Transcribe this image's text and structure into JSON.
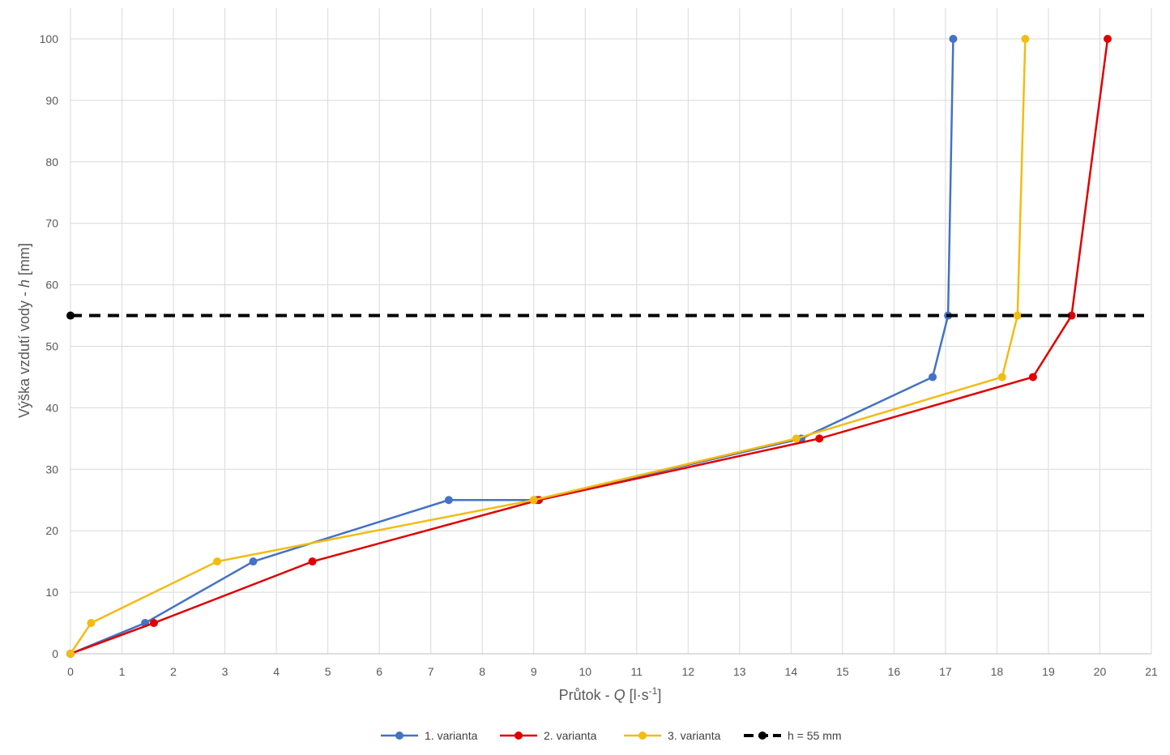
{
  "chart_data": {
    "type": "line",
    "xlabel": {
      "prefix": "Průtok - ",
      "var": "Q",
      "unit_open": " [l·s",
      "sup": "-1",
      "unit_close": "]"
    },
    "ylabel": {
      "prefix": "Výška vzdutí vody - ",
      "var": "h",
      "unit": " [mm]"
    },
    "xlim": [
      0,
      21
    ],
    "ylim": [
      0,
      100
    ],
    "x_ticks": [
      0,
      1,
      2,
      3,
      4,
      5,
      6,
      7,
      8,
      9,
      10,
      11,
      12,
      13,
      14,
      15,
      16,
      17,
      18,
      19,
      20,
      21
    ],
    "y_ticks": [
      0,
      10,
      20,
      30,
      40,
      50,
      60,
      70,
      80,
      90,
      100
    ],
    "grid": true,
    "legend_position": "bottom",
    "series": [
      {
        "name": "1. varianta",
        "color": "#4472C4",
        "dashed": false,
        "x": [
          0,
          1.45,
          3.55,
          7.35,
          9.05,
          14.2,
          16.75,
          17.05,
          17.15
        ],
        "y": [
          0,
          5,
          15,
          25,
          25,
          35,
          45,
          55,
          100
        ]
      },
      {
        "name": "2. varianta",
        "color": "#E00000",
        "dashed": false,
        "x": [
          0,
          1.62,
          4.7,
          9.1,
          14.55,
          18.7,
          19.45,
          20.15
        ],
        "y": [
          0,
          5,
          15,
          25,
          35,
          45,
          55,
          100
        ]
      },
      {
        "name": "3. varianta",
        "color": "#F2BC14",
        "dashed": false,
        "x": [
          0,
          0.4,
          2.85,
          9.0,
          14.1,
          18.1,
          18.4,
          18.55
        ],
        "y": [
          0,
          5,
          15,
          25,
          35,
          45,
          55,
          100
        ]
      },
      {
        "name": "h = 55 mm",
        "color": "#000000",
        "dashed": true,
        "x": [
          0,
          21
        ],
        "y": [
          55,
          55
        ],
        "markers": [
          0
        ]
      }
    ]
  }
}
